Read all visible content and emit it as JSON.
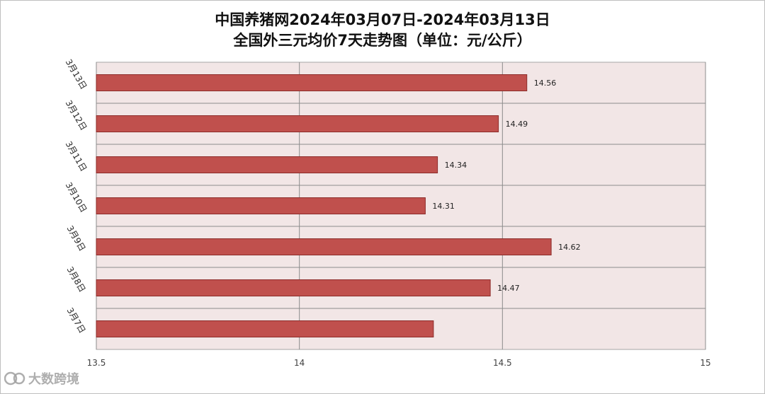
{
  "title_line1": "中国养猪网2024年03月07日-2024年03月13日",
  "title_line2": "全国外三元均价7天走势图（单位：元/公斤）",
  "watermark_text": "大数跨境",
  "chart_data": {
    "type": "bar",
    "orientation": "horizontal",
    "categories": [
      "3月13日",
      "3月12日",
      "3月11日",
      "3月10日",
      "3月9日",
      "3月8日",
      "3月7日"
    ],
    "values": [
      14.56,
      14.49,
      14.34,
      14.31,
      14.62,
      14.47,
      14.33
    ],
    "data_labels": [
      "14.56",
      "14.49",
      "14.34",
      "14.31",
      "14.62",
      "14.47",
      ""
    ],
    "xlim": [
      13.5,
      15
    ],
    "x_ticks": [
      "13.5",
      "14",
      "14.5",
      "15"
    ],
    "grid": true,
    "colors": {
      "bar": "#c0504d",
      "bar_edge": "#8c2b29",
      "plot_bg": "#f2e6e6",
      "grid": "#8c8c8c"
    }
  }
}
